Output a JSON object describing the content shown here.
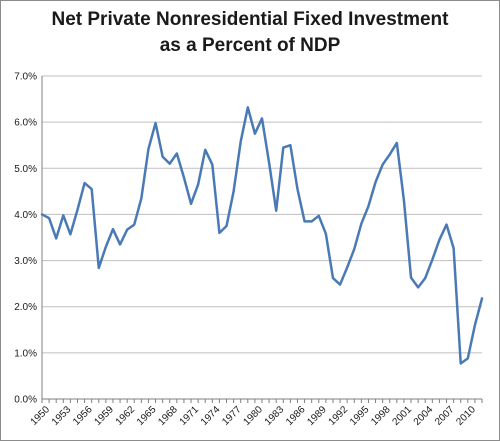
{
  "chart_data": {
    "type": "line",
    "title_line1": "Net Private Nonresidential Fixed Investment",
    "title_line2": "as a Percent of NDP",
    "xlabel": "",
    "ylabel": "",
    "ylim": [
      0,
      7
    ],
    "y_ticks": [
      "0.0%",
      "1.0%",
      "2.0%",
      "3.0%",
      "4.0%",
      "5.0%",
      "6.0%",
      "7.0%"
    ],
    "x_tick_labels": [
      "1950",
      "1953",
      "1956",
      "1959",
      "1962",
      "1965",
      "1968",
      "1971",
      "1974",
      "1977",
      "1980",
      "1983",
      "1986",
      "1989",
      "1992",
      "1995",
      "1998",
      "2001",
      "2004",
      "2007",
      "2010"
    ],
    "x_start": 1950,
    "x_end": 2012,
    "grid": "horizontal",
    "legend": "none",
    "line_color": "#4a7ab5",
    "series": [
      {
        "x": [
          1950,
          1951,
          1952,
          1953,
          1954,
          1955,
          1956,
          1957,
          1958,
          1959,
          1960,
          1961,
          1962,
          1963,
          1964,
          1965,
          1966,
          1967,
          1968,
          1969,
          1970,
          1971,
          1972,
          1973,
          1974,
          1975,
          1976,
          1977,
          1978,
          1979,
          1980,
          1981,
          1982,
          1983,
          1984,
          1985,
          1986,
          1987,
          1988,
          1989,
          1990,
          1991,
          1992,
          1993,
          1994,
          1995,
          1996,
          1997,
          1998,
          1999,
          2000,
          2001,
          2002,
          2003,
          2004,
          2005,
          2006,
          2007,
          2008,
          2009,
          2010,
          2011,
          2012
        ],
        "values": [
          4.0,
          3.92,
          3.48,
          3.98,
          3.57,
          4.1,
          4.68,
          4.55,
          2.84,
          3.3,
          3.68,
          3.35,
          3.67,
          3.78,
          4.35,
          5.42,
          5.98,
          5.25,
          5.1,
          5.32,
          4.8,
          4.23,
          4.65,
          5.4,
          5.08,
          3.6,
          3.75,
          4.5,
          5.58,
          6.32,
          5.75,
          6.08,
          5.12,
          4.08,
          5.45,
          5.5,
          4.55,
          3.85,
          3.85,
          3.97,
          3.58,
          2.62,
          2.48,
          2.85,
          3.25,
          3.8,
          4.18,
          4.7,
          5.08,
          5.3,
          5.55,
          4.3,
          2.63,
          2.42,
          2.62,
          3.02,
          3.45,
          3.78,
          3.27,
          0.77,
          0.88,
          1.6,
          2.18
        ]
      }
    ]
  }
}
